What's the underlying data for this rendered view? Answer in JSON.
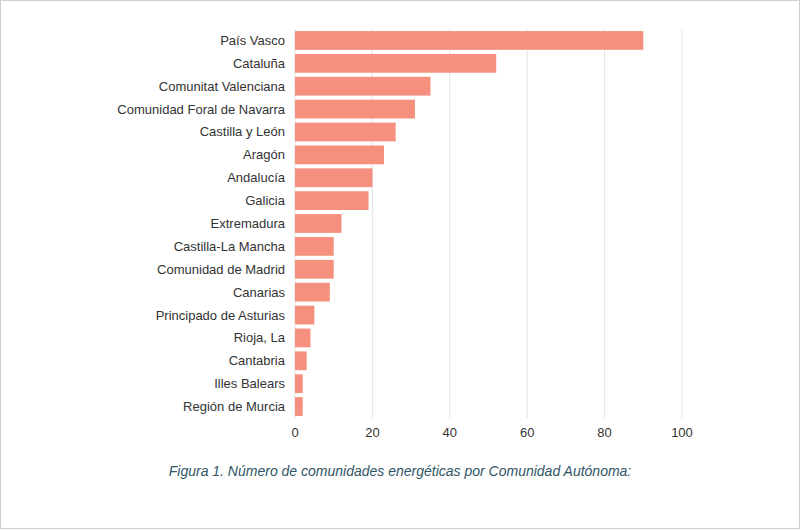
{
  "chart_data": {
    "type": "bar",
    "orientation": "horizontal",
    "title": "Figura 1. Número de comunidades energéticas por Comunidad Autónoma:",
    "categories": [
      "País Vasco",
      "Cataluña",
      "Comunitat Valenciana",
      "Comunidad Foral de Navarra",
      "Castilla y León",
      "Aragón",
      "Andalucía",
      "Galicia",
      "Extremadura",
      "Castilla-La Mancha",
      "Comunidad de Madrid",
      "Canarias",
      "Principado de Asturias",
      "Rioja, La",
      "Cantabria",
      "Illes Balears",
      "Región de Murcia"
    ],
    "values": [
      90,
      52,
      35,
      31,
      26,
      23,
      20,
      19,
      12,
      10,
      10,
      9,
      5,
      4,
      3,
      2,
      2
    ],
    "color": "#f4907d",
    "xlim": [
      0,
      100
    ],
    "xticks": [
      0,
      20,
      40,
      60,
      80,
      100
    ],
    "grid": true
  }
}
